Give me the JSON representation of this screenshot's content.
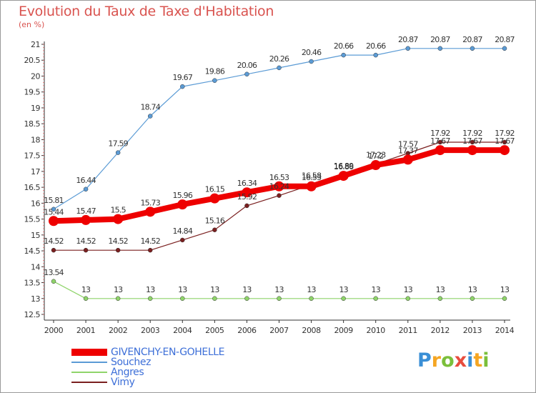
{
  "title": "Evolution du Taux de Taxe d'Habitation",
  "subtitle": "(en %)",
  "logo": {
    "text": "Proxiti",
    "letters": [
      {
        "ch": "P",
        "color": "#3a8fd6"
      },
      {
        "ch": "r",
        "color": "#f5a623"
      },
      {
        "ch": "o",
        "color": "#7bbf3b"
      },
      {
        "ch": "x",
        "color": "#e84c3d"
      },
      {
        "ch": "i",
        "color": "#3a8fd6"
      },
      {
        "ch": "t",
        "color": "#f5a623"
      },
      {
        "ch": "i",
        "color": "#7bbf3b"
      }
    ]
  },
  "chart_data": {
    "type": "line",
    "x": [
      2000,
      2001,
      2002,
      2003,
      2004,
      2005,
      2006,
      2007,
      2008,
      2009,
      2010,
      2011,
      2012,
      2013,
      2014
    ],
    "ylim": [
      12.5,
      21
    ],
    "yticks": [
      "12.5",
      "13",
      "13.5",
      "14",
      "14.5",
      "15",
      "15.5",
      "16",
      "16.5",
      "17",
      "17.5",
      "18",
      "18.5",
      "19",
      "19.5",
      "20",
      "20.5",
      "21"
    ],
    "grid": false,
    "legend_position": "bottom-left",
    "series": [
      {
        "name": "GIVENCHY-EN-GOHELLE",
        "color": "#ee0000",
        "values": [
          15.44,
          15.47,
          15.5,
          15.73,
          15.96,
          16.15,
          16.34,
          16.53,
          16.53,
          16.86,
          17.2,
          17.37,
          17.67,
          17.67,
          17.67
        ],
        "labels": [
          "15.44",
          "15.47",
          "15.5",
          "15.73",
          "15.96",
          "16.15",
          "16.34",
          "16.53",
          "16.53",
          "16.86",
          "17.2",
          "17.37",
          "17.67",
          "17.67",
          "17.67"
        ]
      },
      {
        "name": "Souchez",
        "color": "#5b9bd5",
        "values": [
          15.81,
          16.44,
          17.59,
          18.74,
          19.67,
          19.86,
          20.06,
          20.26,
          20.46,
          20.66,
          20.66,
          20.87,
          20.87,
          20.87,
          20.87
        ],
        "labels": [
          "15.81",
          "16.44",
          "17.59",
          "18.74",
          "19.67",
          "19.86",
          "20.06",
          "20.26",
          "20.46",
          "20.66",
          "20.66",
          "20.87",
          "20.87",
          "20.87",
          "20.87"
        ]
      },
      {
        "name": "Angres",
        "color": "#8fd46a",
        "values": [
          13.54,
          13,
          13,
          13,
          13,
          13,
          13,
          13,
          13,
          13,
          13,
          13,
          13,
          13,
          13
        ],
        "labels": [
          "13.54",
          "13",
          "13",
          "13",
          "13",
          "13",
          "13",
          "13",
          "13",
          "13",
          "13",
          "13",
          "13",
          "13",
          "13"
        ]
      },
      {
        "name": "Vimy",
        "color": "#7a1f1f",
        "values": [
          14.52,
          14.52,
          14.52,
          14.52,
          14.84,
          15.16,
          15.92,
          16.24,
          16.58,
          16.89,
          17.23,
          17.57,
          17.92,
          17.92,
          17.92
        ],
        "labels": [
          "14.52",
          "14.52",
          "14.52",
          "14.52",
          "14.84",
          "15.16",
          "15.92",
          "16.24",
          "16.58",
          "16.89",
          "17.23",
          "17.57",
          "17.92",
          "17.92",
          "17.92"
        ]
      }
    ]
  }
}
